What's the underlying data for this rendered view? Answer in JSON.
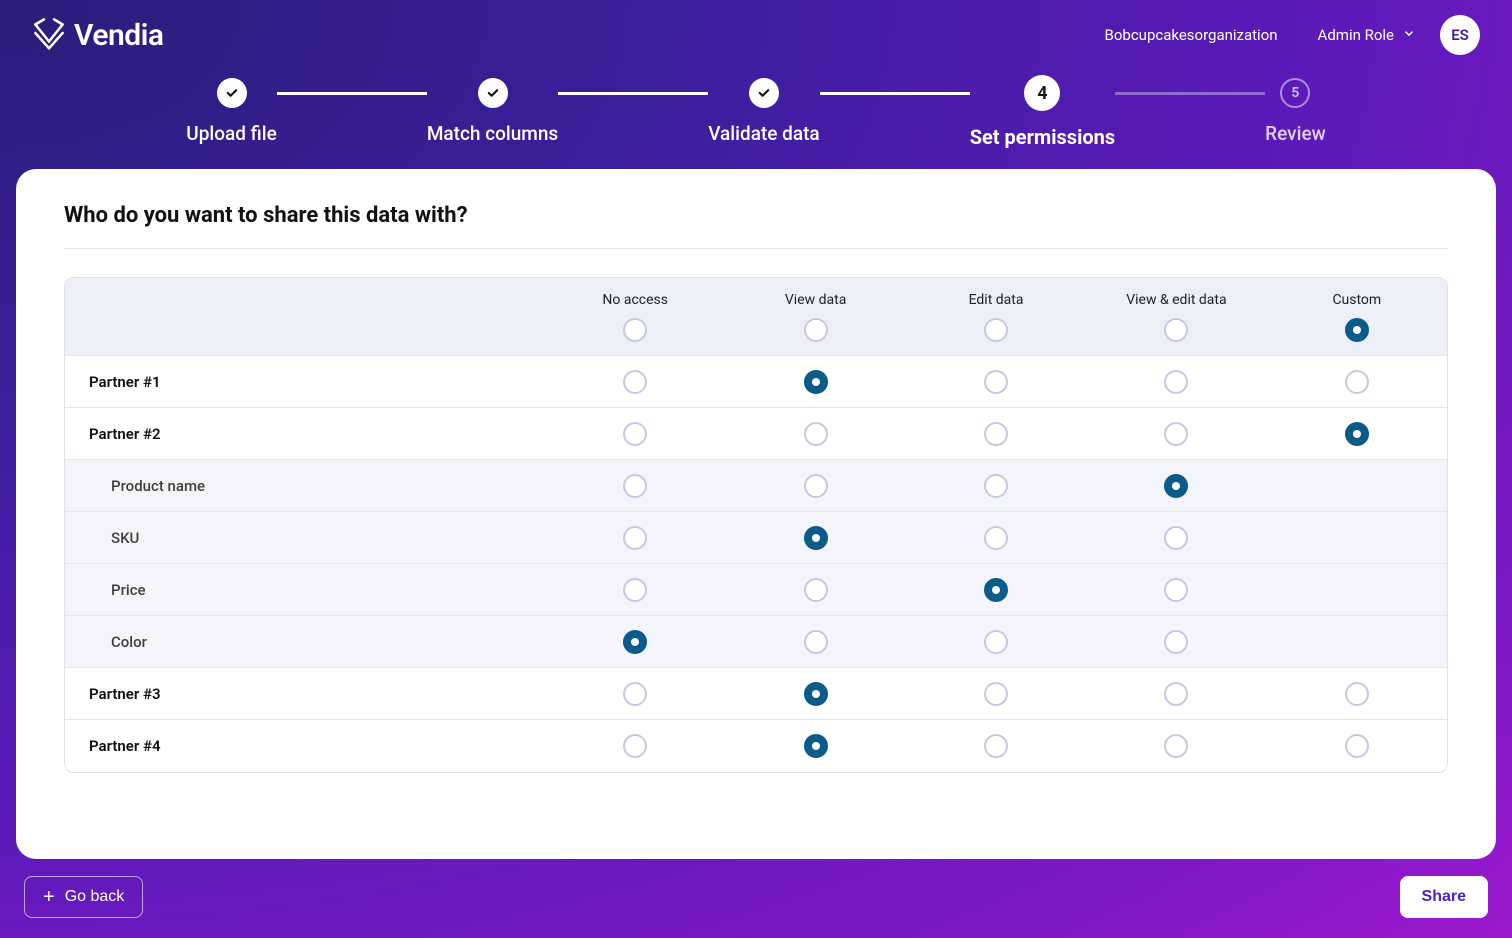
{
  "header": {
    "brand": "Vendia",
    "org": "Bobcupcakesorganization",
    "role": "Admin Role",
    "avatar_initials": "ES"
  },
  "stepper": {
    "steps": [
      {
        "label": "Upload file",
        "state": "done"
      },
      {
        "label": "Match columns",
        "state": "done"
      },
      {
        "label": "Validate data",
        "state": "done"
      },
      {
        "label": "Set permissions",
        "state": "current",
        "num": "4"
      },
      {
        "label": "Review",
        "state": "future",
        "num": "5"
      }
    ]
  },
  "card": {
    "title": "Who do you want to share this data with?"
  },
  "permissions": {
    "columns": [
      "No access",
      "View data",
      "Edit data",
      "View & edit data",
      "Custom"
    ],
    "header_selected_index": 4,
    "radio_selected_color": "#0a5a8a",
    "radio_border_color": "#c8c6e5",
    "rows": [
      {
        "label": "Partner #1",
        "indent": 0,
        "columns": 5,
        "selected": 1
      },
      {
        "label": "Partner #2",
        "indent": 0,
        "columns": 5,
        "selected": 4
      },
      {
        "label": "Product name",
        "indent": 1,
        "columns": 4,
        "selected": 3
      },
      {
        "label": "SKU",
        "indent": 1,
        "columns": 4,
        "selected": 1
      },
      {
        "label": "Price",
        "indent": 1,
        "columns": 4,
        "selected": 2
      },
      {
        "label": "Color",
        "indent": 1,
        "columns": 4,
        "selected": 0
      },
      {
        "label": "Partner #3",
        "indent": 0,
        "columns": 5,
        "selected": 1
      },
      {
        "label": "Partner #4",
        "indent": 0,
        "columns": 5,
        "selected": 1
      }
    ]
  },
  "footer": {
    "back_label": "Go back",
    "share_label": "Share"
  }
}
